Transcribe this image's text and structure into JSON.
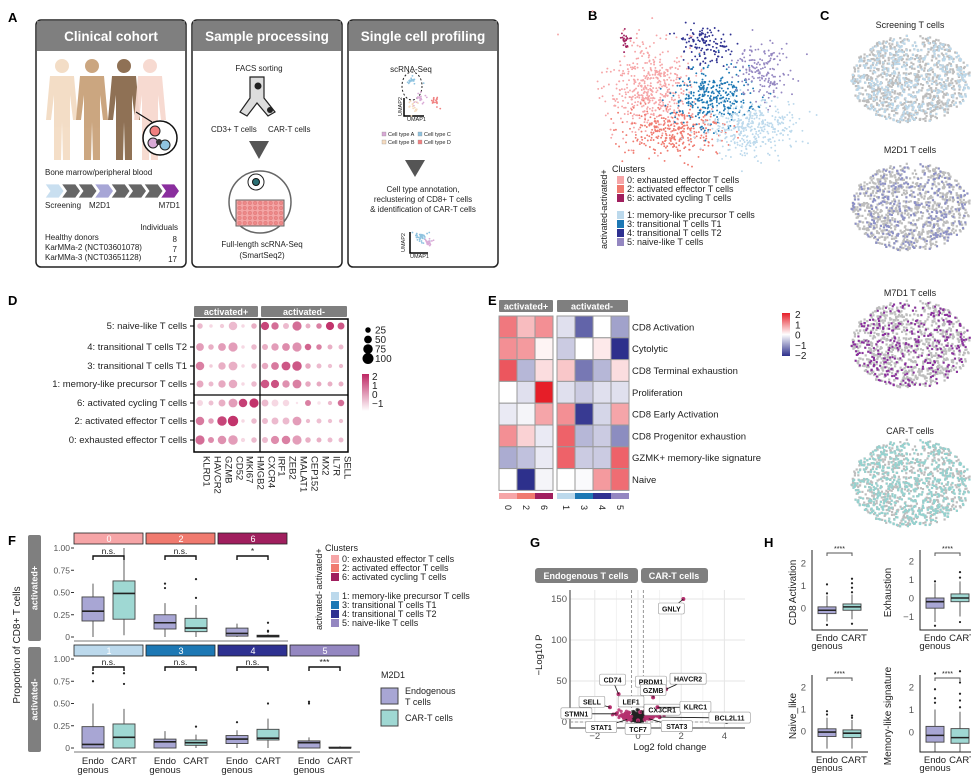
{
  "panel_labels": {
    "a": "A",
    "b": "B",
    "c": "C",
    "d": "D",
    "e": "E",
    "f": "F",
    "g": "G",
    "h": "H"
  },
  "colors": {
    "cluster_0": "#f6a5a7",
    "cluster_2": "#f07a6f",
    "cluster_6": "#a01f5e",
    "cluster_1": "#bcd9ec",
    "cluster_3": "#1d78b4",
    "cluster_4": "#2e3191",
    "cluster_5": "#9487c1",
    "endogenous": "#a8a6d4",
    "cart": "#9fd8d3",
    "header_gray": "#7f7f7f",
    "screening": "#bcd9ec",
    "m2d1": "#8c90c8",
    "m7d1": "#8a2e9e",
    "cart_cells": "#93d3d0",
    "background_cells": "#bdbdbd"
  },
  "panel_a": {
    "clinical_cohort": {
      "title": "Clinical cohort",
      "sample_caption": "Bone marrow/peripheral blood",
      "timepoints": [
        "Screening",
        "M2D1",
        "M7D1"
      ],
      "individuals_header": "Individuals",
      "cohorts": [
        {
          "name": "Healthy donors",
          "n": "8"
        },
        {
          "name": "KarMMa-2 (NCT03601078)",
          "n": "7"
        },
        {
          "name": "KarMMa-3 (NCT03651128)",
          "n": "17"
        }
      ]
    },
    "sample_processing": {
      "title": "Sample processing",
      "facs": "FACS sorting",
      "sort_left": "CD3+ T cells",
      "sort_right": "CAR-T cells",
      "method": "Full-length scRNA-Seq",
      "method_sub": "(SmartSeq2)"
    },
    "single_cell": {
      "title": "Single cell profiling",
      "assay": "scRNA-Seq",
      "umap_x": "UMAP1",
      "umap_y": "UMAP2",
      "cell_types": [
        "Cell type A",
        "Cell type B",
        "Cell type C",
        "Cell type D"
      ],
      "cell_type_colors": [
        "#d9a9d6",
        "#f6dcc0",
        "#8fc3e0",
        "#f08080"
      ],
      "annotation_lines": [
        "Cell type annotation,",
        "reclustering of CD8+ T cells",
        "& identification of CAR-T cells"
      ]
    }
  },
  "clusters": {
    "title": "Clusters",
    "groups": [
      {
        "label": "activated+",
        "items": [
          {
            "id": "0",
            "label": "0: exhausted effector T cells"
          },
          {
            "id": "2",
            "label": "2: activated effector T cells"
          },
          {
            "id": "6",
            "label": "6: activated cycling T cells"
          }
        ]
      },
      {
        "label": "activated-",
        "items": [
          {
            "id": "1",
            "label": "1: memory-like precursor T cells"
          },
          {
            "id": "3",
            "label": "3: transitional T cells T1"
          },
          {
            "id": "4",
            "label": "4: transitional T cells T2"
          },
          {
            "id": "5",
            "label": "5: naive-like T cells"
          }
        ]
      }
    ]
  },
  "panel_c": {
    "titles": [
      "Screening T cells",
      "M2D1 T cells",
      "M7D1 T cells",
      "CAR-T cells"
    ]
  },
  "chart_data": [
    {
      "id": "D",
      "type": "dotplot",
      "column_groups": [
        {
          "label": "activated+",
          "genes": 6
        },
        {
          "label": "activated-",
          "genes": 8
        }
      ],
      "genes": [
        "KLRD1",
        "HAVCR2",
        "GZMB",
        "CD52",
        "MKI67",
        "HMGB2",
        "CXCR4",
        "IRF1",
        "ZEB2",
        "MALAT1",
        "CEP152",
        "MX2",
        "IL7R",
        "SELL"
      ],
      "rows": [
        "5: naive-like T cells",
        "4: transitional T cells T2",
        "3: transitional T cells T1",
        "1: memory-like precursor T cells",
        "6: activated cycling T cells",
        "2: activated effector T cells",
        "0: exhausted effector T cells"
      ],
      "avg_expression": [
        [
          -0.5,
          -1,
          -0.8,
          -0.5,
          -1,
          -0.3,
          1.5,
          0.8,
          -0.5,
          0.8,
          -0.3,
          0.5,
          1.8,
          1.2
        ],
        [
          0,
          -0.3,
          0,
          0,
          -1,
          -0.5,
          -0.3,
          0,
          0.3,
          0.2,
          1,
          0.5,
          -0.3,
          -0.5
        ],
        [
          0.5,
          -0.8,
          -0.3,
          -0.3,
          -1,
          -0.6,
          -0.2,
          0.6,
          1.2,
          1.2,
          -0.2,
          -0.5,
          -0.6,
          -0.5
        ],
        [
          -0.2,
          -0.5,
          -0.2,
          -0.2,
          -1,
          -0.5,
          1.2,
          1.3,
          0.2,
          0.5,
          -0.2,
          -0.2,
          -0.3,
          -0.3
        ],
        [
          -1,
          -0.6,
          -0.3,
          0,
          1.6,
          1.8,
          -0.5,
          -1,
          -1,
          -1.2,
          0.5,
          -1.2,
          -0.5,
          0.8
        ],
        [
          0.6,
          0,
          1.5,
          1.8,
          -1,
          -0.5,
          -0.5,
          -0.5,
          -0.5,
          0,
          -0.5,
          -0.6,
          -0.6,
          -0.6
        ],
        [
          0.8,
          0.3,
          0.2,
          0,
          -1,
          -0.5,
          -0.5,
          0.3,
          0.5,
          0,
          -0.3,
          -0.3,
          -0.5,
          -0.5
        ]
      ],
      "pct_expressed": [
        [
          25,
          10,
          15,
          60,
          10,
          25,
          55,
          45,
          30,
          70,
          20,
          25,
          55,
          40
        ],
        [
          50,
          25,
          50,
          70,
          10,
          25,
          30,
          45,
          50,
          70,
          35,
          25,
          20,
          20
        ],
        [
          60,
          10,
          45,
          65,
          10,
          25,
          35,
          50,
          65,
          75,
          25,
          20,
          15,
          15
        ],
        [
          40,
          20,
          45,
          60,
          10,
          25,
          60,
          55,
          45,
          65,
          25,
          20,
          20,
          20
        ],
        [
          30,
          20,
          40,
          65,
          60,
          70,
          40,
          40,
          35,
          5,
          30,
          10,
          15,
          35
        ],
        [
          60,
          25,
          75,
          90,
          10,
          25,
          30,
          40,
          40,
          65,
          15,
          20,
          15,
          15
        ],
        [
          70,
          30,
          60,
          75,
          15,
          25,
          30,
          55,
          60,
          70,
          25,
          20,
          20,
          20
        ]
      ],
      "size_legend": [
        "25",
        "50",
        "75",
        "100"
      ],
      "color_legend": [
        "2",
        "1",
        "0",
        "−1"
      ]
    },
    {
      "id": "E",
      "type": "heatmap",
      "column_groups": [
        {
          "label": "activated+",
          "columns": [
            "0",
            "2",
            "6"
          ]
        },
        {
          "label": "activated-",
          "columns": [
            "1",
            "3",
            "4",
            "5"
          ]
        }
      ],
      "rows": [
        "CD8 Activation",
        "Cytolytic",
        "CD8 Terminal exhaustion",
        "Proliferation",
        "CD8 Early Activation",
        "CD8 Progenitor exhaustion",
        "GZMK+ memory-like signature",
        "Naive"
      ],
      "values": [
        [
          1.2,
          0.6,
          1.0,
          -0.3,
          -1.5,
          0,
          -0.9
        ],
        [
          1.0,
          0.9,
          0.1,
          -0.5,
          0,
          0.2,
          -2
        ],
        [
          1.5,
          -0.7,
          0.3,
          0.5,
          -1.3,
          -0.7,
          0.3
        ],
        [
          0,
          -0.3,
          2,
          -0.3,
          -0.5,
          -0.3,
          -0.3
        ],
        [
          -0.2,
          -0.1,
          0.8,
          1.0,
          -1.9,
          -0.4,
          0.8
        ],
        [
          1.0,
          0.4,
          -0.2,
          1.4,
          -0.7,
          -0.5,
          -1.1
        ],
        [
          -0.8,
          -0.6,
          -0.2,
          1.4,
          -0.5,
          -0.5,
          1.4
        ],
        [
          0,
          -2,
          -0.1,
          0,
          -0.05,
          0.9,
          1.3
        ]
      ],
      "color_range": [
        -2,
        2
      ],
      "legend_ticks": [
        "2",
        "1",
        "0",
        "−1",
        "−2"
      ]
    },
    {
      "id": "F",
      "type": "boxplot",
      "ylabel": "Proportion of CD8+ T cells",
      "y_ticks": [
        "0",
        "0.25",
        "0.50",
        "0.75",
        "1.00"
      ],
      "ylim": [
        0,
        1
      ],
      "x_categories": [
        [
          "Endo",
          "genous"
        ],
        [
          "CART"
        ]
      ],
      "rows": [
        {
          "label": "activated+",
          "panels": [
            {
              "cluster": "0",
              "sig": "n.s.",
              "endo": {
                "min": 0,
                "q1": 0.18,
                "median": 0.29,
                "q3": 0.45,
                "max": 0.6,
                "outliers": []
              },
              "cart": {
                "min": 0.02,
                "q1": 0.2,
                "median": 0.49,
                "q3": 0.63,
                "max": 1.0,
                "outliers": []
              }
            },
            {
              "cluster": "2",
              "sig": "n.s.",
              "endo": {
                "min": 0,
                "q1": 0.09,
                "median": 0.16,
                "q3": 0.25,
                "max": 0.38,
                "outliers": [
                  0.55,
                  0.6
                ]
              },
              "cart": {
                "min": 0,
                "q1": 0.06,
                "median": 0.1,
                "q3": 0.21,
                "max": 0.36,
                "outliers": [
                  0.44,
                  0.65
                ]
              }
            },
            {
              "cluster": "6",
              "sig": "*",
              "endo": {
                "min": 0,
                "q1": 0.01,
                "median": 0.04,
                "q3": 0.1,
                "max": 0.15,
                "outliers": []
              },
              "cart": {
                "min": 0,
                "q1": 0,
                "median": 0.01,
                "q3": 0.02,
                "max": 0.03,
                "outliers": [
                  0.06,
                  0.07,
                  0.16
                ]
              }
            }
          ]
        },
        {
          "label": "activated-",
          "panels": [
            {
              "cluster": "1",
              "sig": "n.s.",
              "endo": {
                "min": 0,
                "q1": 0,
                "median": 0.04,
                "q3": 0.24,
                "max": 0.5,
                "outliers": [
                  0.75,
                  0.84
                ]
              },
              "cart": {
                "min": 0,
                "q1": 0,
                "median": 0.12,
                "q3": 0.27,
                "max": 0.44,
                "outliers": [
                  0.72,
                  0.84
                ]
              }
            },
            {
              "cluster": "3",
              "sig": "n.s.",
              "endo": {
                "min": 0,
                "q1": 0,
                "median": 0.07,
                "q3": 0.1,
                "max": 0.19,
                "outliers": []
              },
              "cart": {
                "min": 0,
                "q1": 0.03,
                "median": 0.06,
                "q3": 0.09,
                "max": 0.15,
                "outliers": [
                  0.24
                ]
              }
            },
            {
              "cluster": "4",
              "sig": "n.s.",
              "endo": {
                "min": 0,
                "q1": 0.05,
                "median": 0.1,
                "q3": 0.14,
                "max": 0.2,
                "outliers": [
                  0.29
                ]
              },
              "cart": {
                "min": 0,
                "q1": 0.09,
                "median": 0.11,
                "q3": 0.21,
                "max": 0.33,
                "outliers": [
                  0.5
                ]
              }
            },
            {
              "cluster": "5",
              "sig": "***",
              "endo": {
                "min": 0,
                "q1": 0,
                "median": 0.06,
                "q3": 0.08,
                "max": 0.12,
                "outliers": [
                  0.5,
                  0.52
                ]
              },
              "cart": {
                "min": 0,
                "q1": 0,
                "median": 0,
                "q3": 0.01,
                "max": 0.02,
                "outliers": []
              }
            }
          ]
        }
      ],
      "legend": {
        "title": "M2D1",
        "items": [
          {
            "key": "endo",
            "lines": [
              "Endogenous",
              "T cells"
            ]
          },
          {
            "key": "cart",
            "lines": [
              "CAR-T cells"
            ]
          }
        ]
      }
    },
    {
      "id": "G",
      "type": "scatter",
      "strips": [
        "Endogenous T cells",
        "CAR-T cells"
      ],
      "xlabel": "Log2 fold change",
      "ylabel": "−Log10 P",
      "x_ticks": [
        -2,
        0,
        2,
        4
      ],
      "y_ticks": [
        0,
        50,
        100,
        150
      ],
      "xlim": [
        -3.5,
        5.2
      ],
      "ylim": [
        -8,
        162
      ],
      "fc_cutoff": [
        -0.3,
        0.25
      ],
      "labeled_genes": [
        {
          "gene": "GNLY",
          "x": 2.1,
          "y": 150
        },
        {
          "gene": "PRDM1",
          "x": 0.6,
          "y": 34
        },
        {
          "gene": "HAVCR2",
          "x": 1.3,
          "y": 40
        },
        {
          "gene": "GZMB",
          "x": 0.7,
          "y": 30
        },
        {
          "gene": "CD74",
          "x": -0.9,
          "y": 34
        },
        {
          "gene": "LEF1",
          "x": -0.6,
          "y": 22
        },
        {
          "gene": "SELL",
          "x": -1.3,
          "y": 18
        },
        {
          "gene": "CX3CR1",
          "x": 0.1,
          "y": 12
        },
        {
          "gene": "KLRC1",
          "x": 0.9,
          "y": 18
        },
        {
          "gene": "STMN1",
          "x": -1.0,
          "y": 10
        },
        {
          "gene": "BCL2L11",
          "x": 1.0,
          "y": 6
        },
        {
          "gene": "STAT1",
          "x": -0.5,
          "y": 3
        },
        {
          "gene": "TCF7",
          "x": 0.0,
          "y": 2
        },
        {
          "gene": "STAT3",
          "x": 0.5,
          "y": 4
        }
      ],
      "other_points": [
        {
          "x": 4.1,
          "y": 0
        }
      ]
    },
    {
      "id": "H",
      "type": "boxplot",
      "x_categories": [
        [
          "Endo",
          "genous"
        ],
        [
          "CART"
        ]
      ],
      "sig": "****",
      "panels": [
        {
          "ylabel": "CD8 Activation",
          "y_ticks": [
            0,
            1,
            2
          ],
          "ylim": [
            -0.9,
            2.9
          ],
          "endo": {
            "min": -0.6,
            "q1": -0.25,
            "median": -0.1,
            "q3": 0.05,
            "max": 0.55,
            "outliers": [
              -0.75,
              0.65,
              1.05
            ]
          },
          "cart": {
            "min": -0.5,
            "q1": -0.1,
            "median": 0.05,
            "q3": 0.18,
            "max": 0.6,
            "outliers": [
              -0.7,
              0.7,
              0.9,
              1.1,
              1.3
            ]
          }
        },
        {
          "ylabel": "Exhaustion",
          "y_ticks": [
            -1,
            0,
            1,
            2
          ],
          "ylim": [
            -1.8,
            2.9
          ],
          "endo": {
            "min": -1.3,
            "q1": -0.55,
            "median": -0.2,
            "q3": 0,
            "max": 0.8,
            "outliers": [
              -1.5,
              0.9
            ]
          },
          "cart": {
            "min": -1.0,
            "q1": -0.2,
            "median": 0,
            "q3": 0.22,
            "max": 0.9,
            "outliers": [
              -1.3,
              1.1,
              1.4
            ]
          }
        },
        {
          "ylabel": "Naive_like",
          "y_ticks": [
            0,
            1,
            2
          ],
          "ylim": [
            -0.9,
            2.9
          ],
          "endo": {
            "min": -0.8,
            "q1": -0.25,
            "median": -0.05,
            "q3": 0.1,
            "max": 0.6,
            "outliers": [
              0.75,
              0.9
            ]
          },
          "cart": {
            "min": -0.8,
            "q1": -0.3,
            "median": -0.1,
            "q3": 0.05,
            "max": 0.5,
            "outliers": [
              0.6,
              0.7
            ]
          }
        },
        {
          "ylabel": "Memory-like signature",
          "y_ticks": [
            0,
            1,
            2
          ],
          "ylim": [
            -0.9,
            2.9
          ],
          "endo": {
            "min": -0.9,
            "q1": -0.45,
            "median": -0.15,
            "q3": 0.25,
            "max": 1.0,
            "outliers": [
              1.3,
              1.5,
              1.9,
              2.6
            ]
          },
          "cart": {
            "min": -0.9,
            "q1": -0.5,
            "median": -0.25,
            "q3": 0.15,
            "max": 0.9,
            "outliers": [
              1.1,
              1.4,
              1.7,
              2.2,
              2.7
            ]
          }
        }
      ]
    }
  ]
}
